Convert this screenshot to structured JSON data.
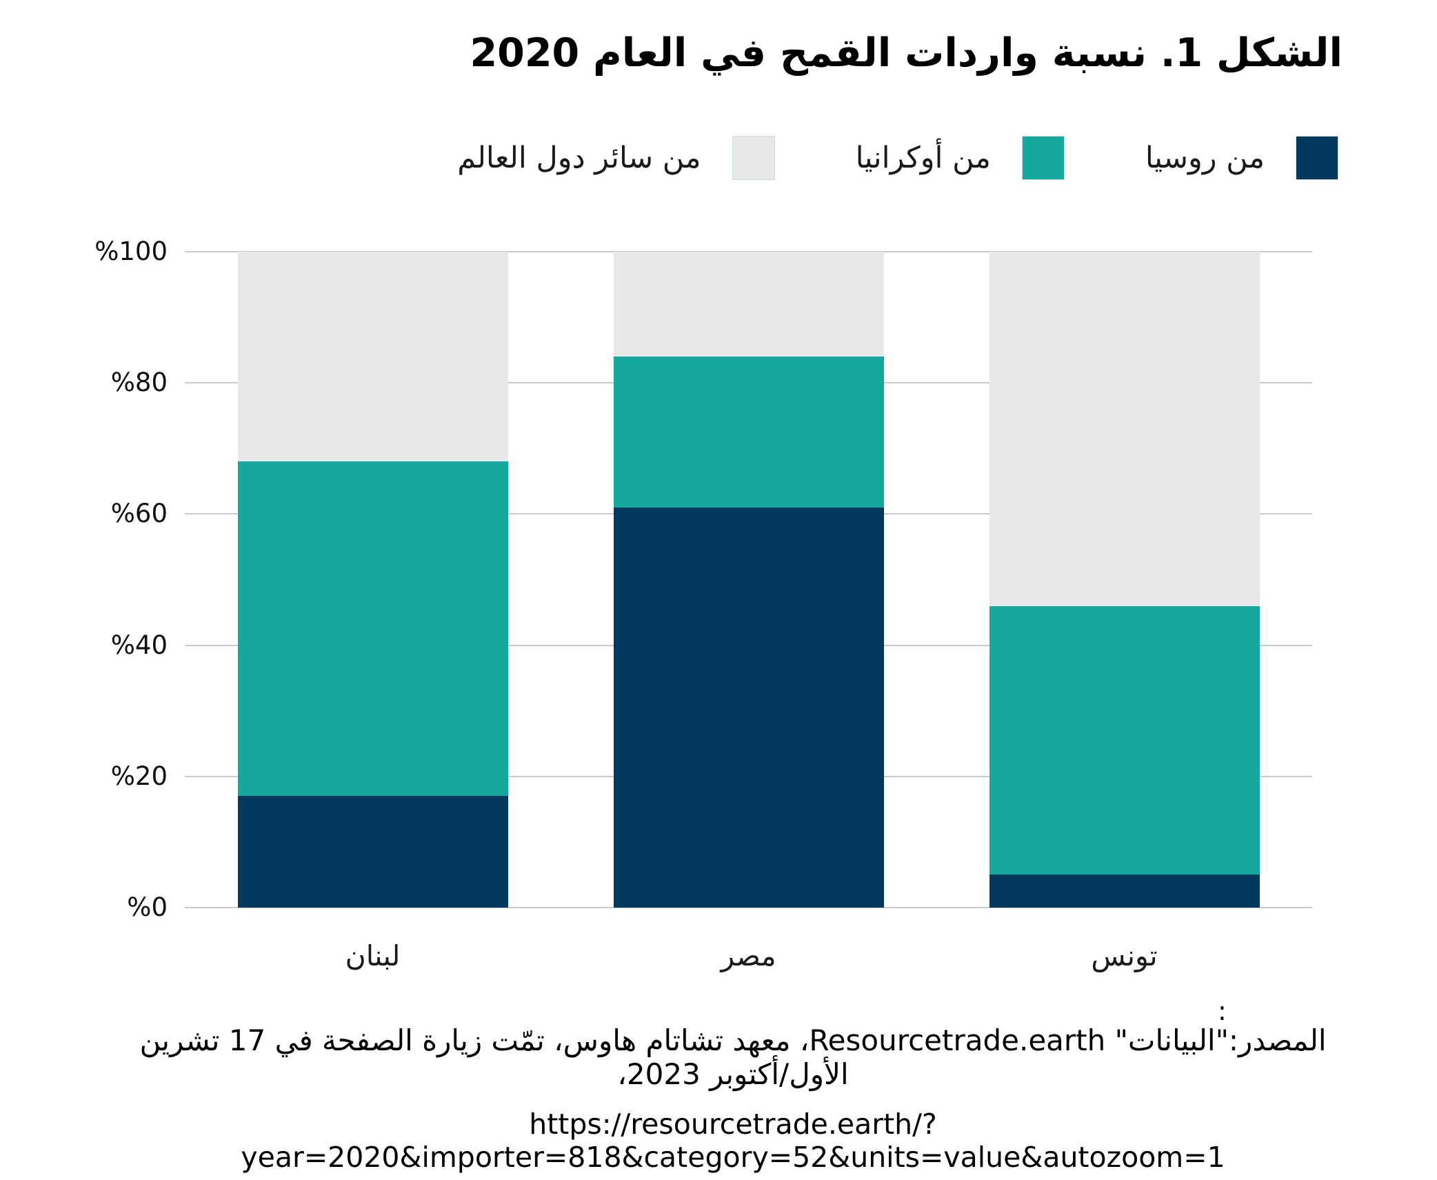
{
  "title": "الشكل 1. نسبة واردات القمح في العام 2020",
  "chart_data": {
    "type": "bar",
    "stacked": true,
    "title": "الشكل 1. نسبة واردات القمح في العام 2020",
    "categories": [
      "لبنان",
      "مصر",
      "تونس"
    ],
    "series": [
      {
        "name": "من روسيا",
        "color": "#04395E",
        "values": [
          17,
          61,
          5
        ]
      },
      {
        "name": "من أوكرانيا",
        "color": "#15A89F",
        "values": [
          51,
          23,
          41
        ]
      },
      {
        "name": "من سائر دول العالم",
        "color": "#E7E8E9",
        "values": [
          32,
          16,
          54
        ]
      }
    ],
    "ylim": [
      0,
      100
    ],
    "yticks": [
      0,
      20,
      40,
      60,
      80,
      100
    ],
    "ytick_labels": [
      "%0",
      "%20",
      "%40",
      "%60",
      "%80",
      "%100"
    ],
    "xlabel": "",
    "ylabel": "",
    "grid": true,
    "gridline_color": "#CBCBCB",
    "legend_position": "top-right"
  },
  "source": {
    "colon": ":",
    "line1": "المصدر:\"البيانات\" Resourcetrade.earth، معهد تشاتام هاوس، تمّت زيارة الصفحة في 17 تشرين الأول/أكتوبر 2023،",
    "line2": "https://resourcetrade.earth/?year=2020&importer=818&category=52&units=value&autozoom=1"
  }
}
